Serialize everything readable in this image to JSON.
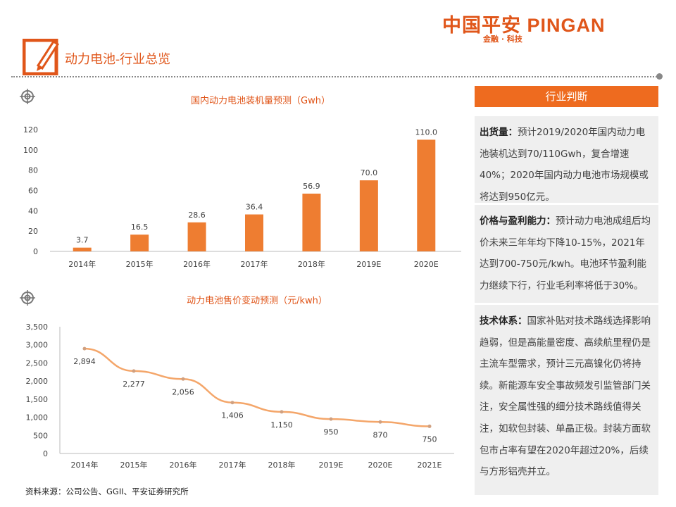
{
  "header": {
    "logo_main": "中国平安 PINGAN",
    "logo_sub": "金融 · 科技",
    "title": "动力电池-行业总览"
  },
  "colors": {
    "accent": "#ee7d31",
    "panel_header": "#ee6b1f",
    "panel_bg": "#efefef"
  },
  "chart_data": [
    {
      "type": "bar",
      "title": "国内动力电池装机量预测（Gwh）",
      "categories": [
        "2014年",
        "2015年",
        "2016年",
        "2017年",
        "2018年",
        "2019E",
        "2020E"
      ],
      "values": [
        3.7,
        16.5,
        28.6,
        36.4,
        56.9,
        70.0,
        110.0
      ],
      "value_labels": [
        "3.7",
        "16.5",
        "28.6",
        "36.4",
        "56.9",
        "70.0",
        "110.0"
      ],
      "yticks": [
        "0",
        "20",
        "40",
        "60",
        "80",
        "100",
        "120"
      ],
      "ylim": [
        0,
        120
      ],
      "grid": false,
      "color": "#ee7d31"
    },
    {
      "type": "line",
      "title": "动力电池售价变动预测（元/kwh）",
      "categories": [
        "2014年",
        "2015年",
        "2016年",
        "2017年",
        "2018年",
        "2019E",
        "2020E",
        "2021E"
      ],
      "values": [
        2894,
        2277,
        2056,
        1406,
        1150,
        950,
        870,
        750
      ],
      "value_labels": [
        "2,894",
        "2,277",
        "2,056",
        "1,406",
        "1,150",
        "950",
        "870",
        "750"
      ],
      "yticks": [
        "0",
        "500",
        "1,000",
        "1,500",
        "2,000",
        "2,500",
        "3,000",
        "3,500"
      ],
      "ylim": [
        0,
        3500
      ],
      "grid": false,
      "color": "#f4a66a"
    }
  ],
  "panel": {
    "title": "行业判断",
    "sections": [
      {
        "label": "出货量：",
        "text": "预计2019/2020年国内动力电池装机达到70/110Gwh，复合增速40%；2020年国内动力电池市场规模或将达到950亿元。"
      },
      {
        "label": "价格与盈利能力：",
        "text": "预计动力电池成组后均价未来三年年均下降10-15%，2021年达到700-750元/kwh。电池环节盈利能力继续下行，行业毛利率将低于30%。"
      },
      {
        "label": "技术体系：",
        "text": "国家补贴对技术路线选择影响趋弱，但是高能量密度、高续航里程仍是主流车型需求，预计三元高镍化仍将持续。新能源车安全事故频发引监管部门关注，安全属性强的细分技术路线值得关注，如软包封装、单晶正极。封装方面软包市占率有望在2020年超过20%，后续与方形铝壳并立。"
      }
    ]
  },
  "footer": {
    "source": "资料来源：公司公告、GGII、平安证券研究所"
  }
}
